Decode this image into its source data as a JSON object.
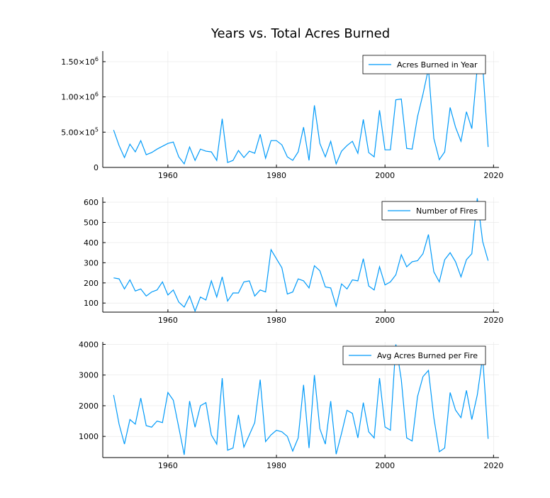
{
  "title": "Years vs. Total Acres Burned",
  "colors": {
    "series": "#009af9",
    "grid": "#e6e6e6",
    "axis": "#000000"
  },
  "chart_data": [
    {
      "type": "line",
      "title": "",
      "xlabel": "",
      "ylabel": "",
      "xlim": [
        1948,
        2021
      ],
      "ylim": [
        0,
        1650000
      ],
      "grid": true,
      "legend_position": "top-right",
      "x_ticks": [
        1960,
        1980,
        2000,
        2020
      ],
      "y_ticks": [
        {
          "value": 0,
          "label": "0"
        },
        {
          "value": 500000,
          "label": "5.00×10",
          "exp": "5"
        },
        {
          "value": 1000000,
          "label": "1.00×10",
          "exp": "6"
        },
        {
          "value": 1500000,
          "label": "1.50×10",
          "exp": "6"
        }
      ],
      "series": [
        {
          "name": "Acres Burned in Year",
          "x": [
            1950,
            1951,
            1952,
            1953,
            1954,
            1955,
            1956,
            1957,
            1958,
            1959,
            1960,
            1961,
            1962,
            1963,
            1964,
            1965,
            1966,
            1967,
            1968,
            1969,
            1970,
            1971,
            1972,
            1973,
            1974,
            1975,
            1976,
            1977,
            1978,
            1979,
            1980,
            1981,
            1982,
            1983,
            1984,
            1985,
            1986,
            1987,
            1988,
            1989,
            1990,
            1991,
            1992,
            1993,
            1994,
            1995,
            1996,
            1997,
            1998,
            1999,
            2000,
            2001,
            2002,
            2003,
            2004,
            2005,
            2006,
            2007,
            2008,
            2009,
            2010,
            2011,
            2012,
            2013,
            2014,
            2015,
            2016,
            2017,
            2018,
            2019
          ],
          "y": [
            530000,
            310000,
            140000,
            330000,
            220000,
            380000,
            180000,
            210000,
            260000,
            300000,
            340000,
            360000,
            150000,
            50000,
            290000,
            100000,
            260000,
            230000,
            220000,
            100000,
            690000,
            70000,
            100000,
            240000,
            140000,
            230000,
            200000,
            470000,
            130000,
            380000,
            380000,
            320000,
            150000,
            100000,
            220000,
            570000,
            100000,
            880000,
            340000,
            150000,
            370000,
            50000,
            230000,
            310000,
            370000,
            200000,
            680000,
            210000,
            150000,
            810000,
            250000,
            250000,
            960000,
            970000,
            270000,
            260000,
            720000,
            1040000,
            1400000,
            410000,
            110000,
            220000,
            850000,
            570000,
            370000,
            790000,
            550000,
            1420000,
            1450000,
            290000
          ]
        }
      ]
    },
    {
      "type": "line",
      "title": "",
      "xlabel": "",
      "ylabel": "",
      "xlim": [
        1948,
        2021
      ],
      "ylim": [
        55,
        625
      ],
      "grid": true,
      "legend_position": "top-right",
      "x_ticks": [
        1960,
        1980,
        2000,
        2020
      ],
      "y_ticks": [
        {
          "value": 100,
          "label": "100"
        },
        {
          "value": 200,
          "label": "200"
        },
        {
          "value": 300,
          "label": "300"
        },
        {
          "value": 400,
          "label": "400"
        },
        {
          "value": 500,
          "label": "500"
        },
        {
          "value": 600,
          "label": "600"
        }
      ],
      "series": [
        {
          "name": "Number of Fires",
          "x": [
            1950,
            1951,
            1952,
            1953,
            1954,
            1955,
            1956,
            1957,
            1958,
            1959,
            1960,
            1961,
            1962,
            1963,
            1964,
            1965,
            1966,
            1967,
            1968,
            1969,
            1970,
            1971,
            1972,
            1973,
            1974,
            1975,
            1976,
            1977,
            1978,
            1979,
            1980,
            1981,
            1982,
            1983,
            1984,
            1985,
            1986,
            1987,
            1988,
            1989,
            1990,
            1991,
            1992,
            1993,
            1994,
            1995,
            1996,
            1997,
            1998,
            1999,
            2000,
            2001,
            2002,
            2003,
            2004,
            2005,
            2006,
            2007,
            2008,
            2009,
            2010,
            2011,
            2012,
            2013,
            2014,
            2015,
            2016,
            2017,
            2018,
            2019
          ],
          "y": [
            225,
            220,
            170,
            215,
            160,
            170,
            135,
            155,
            165,
            205,
            140,
            165,
            105,
            80,
            135,
            60,
            130,
            115,
            210,
            130,
            230,
            110,
            150,
            150,
            205,
            210,
            135,
            165,
            155,
            365,
            320,
            275,
            145,
            155,
            220,
            210,
            175,
            285,
            260,
            180,
            175,
            85,
            195,
            170,
            215,
            210,
            320,
            185,
            165,
            280,
            190,
            205,
            240,
            340,
            280,
            305,
            310,
            345,
            440,
            255,
            205,
            315,
            350,
            305,
            230,
            315,
            345,
            620,
            405,
            310
          ]
        }
      ]
    },
    {
      "type": "line",
      "title": "",
      "xlabel": "",
      "ylabel": "",
      "xlim": [
        1948,
        2021
      ],
      "ylim": [
        310,
        4080
      ],
      "grid": true,
      "legend_position": "top-right",
      "x_ticks": [
        1960,
        1980,
        2000,
        2020
      ],
      "y_ticks": [
        {
          "value": 1000,
          "label": "1000"
        },
        {
          "value": 2000,
          "label": "2000"
        },
        {
          "value": 3000,
          "label": "3000"
        },
        {
          "value": 4000,
          "label": "4000"
        }
      ],
      "series": [
        {
          "name": "Avg Acres Burned per Fire",
          "x": [
            1950,
            1951,
            1952,
            1953,
            1954,
            1955,
            1956,
            1957,
            1958,
            1959,
            1960,
            1961,
            1962,
            1963,
            1964,
            1965,
            1966,
            1967,
            1968,
            1969,
            1970,
            1971,
            1972,
            1973,
            1974,
            1975,
            1976,
            1977,
            1978,
            1979,
            1980,
            1981,
            1982,
            1983,
            1984,
            1985,
            1986,
            1987,
            1988,
            1989,
            1990,
            1991,
            1992,
            1993,
            1994,
            1995,
            1996,
            1997,
            1998,
            1999,
            2000,
            2001,
            2002,
            2003,
            2004,
            2005,
            2006,
            2007,
            2008,
            2009,
            2010,
            2011,
            2012,
            2013,
            2014,
            2015,
            2016,
            2017,
            2018,
            2019
          ],
          "y": [
            2350,
            1400,
            750,
            1550,
            1400,
            2250,
            1350,
            1300,
            1500,
            1450,
            2430,
            2180,
            1300,
            400,
            2150,
            1300,
            2000,
            2100,
            1050,
            750,
            2900,
            550,
            620,
            1700,
            650,
            1050,
            1450,
            2850,
            830,
            1050,
            1200,
            1150,
            1000,
            520,
            950,
            2680,
            620,
            3000,
            1250,
            750,
            2150,
            420,
            1100,
            1850,
            1750,
            950,
            2100,
            1150,
            950,
            2900,
            1310,
            1200,
            4000,
            2850,
            950,
            850,
            2300,
            2950,
            3150,
            1610,
            500,
            620,
            2430,
            1860,
            1610,
            2500,
            1550,
            2350,
            3600,
            920
          ]
        }
      ]
    }
  ]
}
